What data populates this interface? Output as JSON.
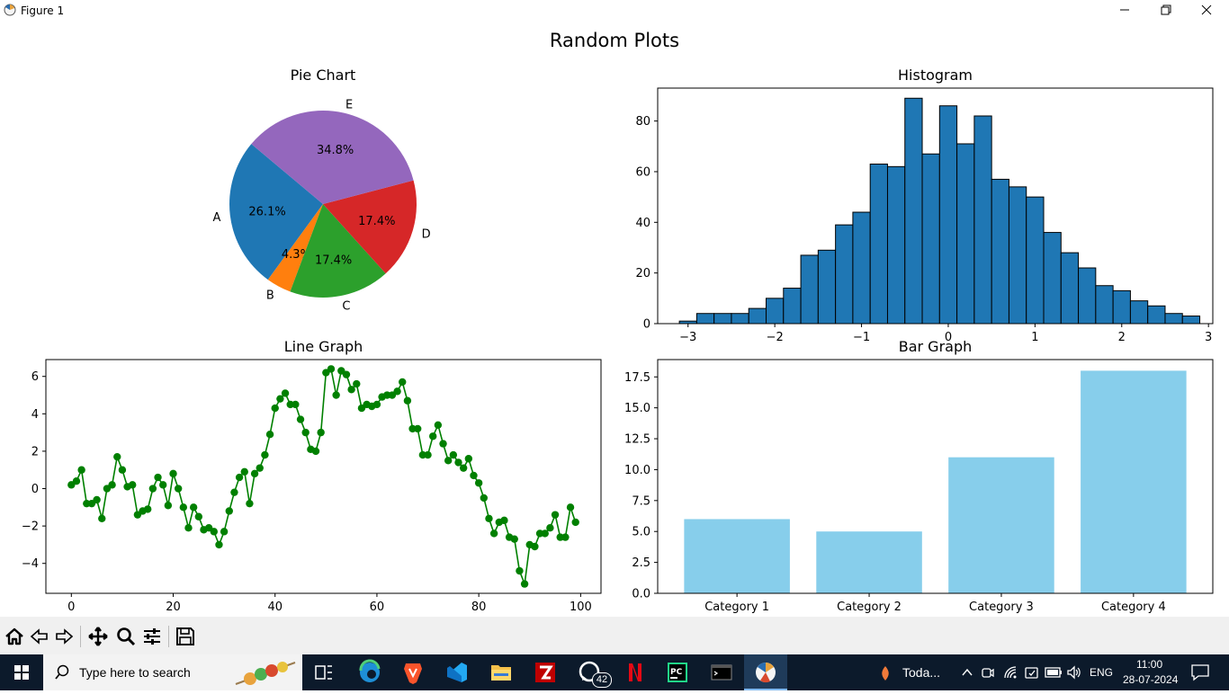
{
  "window": {
    "title": "Figure 1"
  },
  "figure": {
    "suptitle": "Random Plots"
  },
  "chart_data": [
    {
      "type": "pie",
      "title": "Pie Chart",
      "labels": [
        "A",
        "B",
        "C",
        "D",
        "E"
      ],
      "values": [
        26.1,
        4.3,
        17.4,
        17.4,
        34.8
      ],
      "pct_labels": [
        "26.1%",
        "4.3%",
        "17.4%",
        "17.4%",
        "34.8%"
      ],
      "colors": [
        "#1f77b4",
        "#ff7f0e",
        "#2ca02c",
        "#d62728",
        "#9467bd"
      ],
      "startangle": 140
    },
    {
      "type": "bar",
      "subtype": "histogram",
      "title": "Histogram",
      "bins_start": -3.1,
      "bin_width": 0.2,
      "counts": [
        1,
        4,
        4,
        4,
        6,
        10,
        14,
        27,
        29,
        39,
        44,
        63,
        62,
        89,
        67,
        86,
        71,
        82,
        57,
        54,
        50,
        36,
        28,
        22,
        15,
        13,
        9,
        7,
        4,
        3
      ],
      "xlim": [
        -3.35,
        3.05
      ],
      "ylim": [
        0,
        93
      ],
      "xticks": [
        -3,
        -2,
        -1,
        0,
        1,
        2,
        3
      ],
      "xtick_labels": [
        "−3",
        "−2",
        "−1",
        "0",
        "1",
        "2",
        "3"
      ],
      "yticks": [
        0,
        20,
        40,
        60,
        80
      ],
      "color": "#1f77b4",
      "edgecolor": "#000000"
    },
    {
      "type": "line",
      "title": "Line Graph",
      "x_start": 0,
      "y": [
        0.2,
        0.4,
        1.0,
        -0.8,
        -0.8,
        -0.6,
        -1.6,
        0.0,
        0.2,
        1.7,
        1.0,
        0.1,
        0.2,
        -1.4,
        -1.2,
        -1.1,
        0.0,
        0.6,
        0.2,
        -0.9,
        0.8,
        0.0,
        -1.0,
        -2.1,
        -1.0,
        -1.5,
        -2.2,
        -2.1,
        -2.3,
        -3.0,
        -2.3,
        -1.2,
        -0.2,
        0.6,
        0.9,
        -0.8,
        0.8,
        1.1,
        1.8,
        2.9,
        4.3,
        4.8,
        5.1,
        4.5,
        4.5,
        3.7,
        3.0,
        2.1,
        2.0,
        3.0,
        6.2,
        6.4,
        5.0,
        6.3,
        6.1,
        5.3,
        5.6,
        4.3,
        4.5,
        4.4,
        4.5,
        4.9,
        5.0,
        5.0,
        5.2,
        5.7,
        4.7,
        3.2,
        3.2,
        1.8,
        1.8,
        2.8,
        3.4,
        2.4,
        1.5,
        1.8,
        1.4,
        1.1,
        1.6,
        0.7,
        0.3,
        -0.5,
        -1.6,
        -2.4,
        -1.8,
        -1.7,
        -2.6,
        -2.7,
        -4.4,
        -5.1,
        -3.0,
        -3.1,
        -2.4,
        -2.4,
        -2.1,
        -1.4,
        -2.6,
        -2.6,
        -1.0,
        -1.8
      ],
      "xlim": [
        -5,
        104
      ],
      "ylim": [
        -5.6,
        6.9
      ],
      "xticks": [
        0,
        20,
        40,
        60,
        80,
        100
      ],
      "yticks": [
        -4,
        -2,
        0,
        2,
        4,
        6
      ],
      "ytick_labels": [
        "−4",
        "−2",
        "0",
        "2",
        "4",
        "6"
      ],
      "color": "#008000"
    },
    {
      "type": "bar",
      "title": "Bar Graph",
      "categories": [
        "Category 1",
        "Category 2",
        "Category 3",
        "Category 4"
      ],
      "values": [
        6,
        5,
        11,
        18
      ],
      "ylim": [
        0,
        18.9
      ],
      "yticks": [
        0,
        2.5,
        5,
        7.5,
        10,
        12.5,
        15,
        17.5
      ],
      "ytick_labels": [
        "0.0",
        "2.5",
        "5.0",
        "7.5",
        "10.0",
        "12.5",
        "15.0",
        "17.5"
      ],
      "color": "#87ceeb"
    }
  ],
  "taskbar": {
    "search_placeholder": "Type here to search",
    "whatsapp_badge": "42",
    "weather_text": "Toda...",
    "language": "ENG",
    "time": "11:00",
    "date": "28-07-2024"
  }
}
